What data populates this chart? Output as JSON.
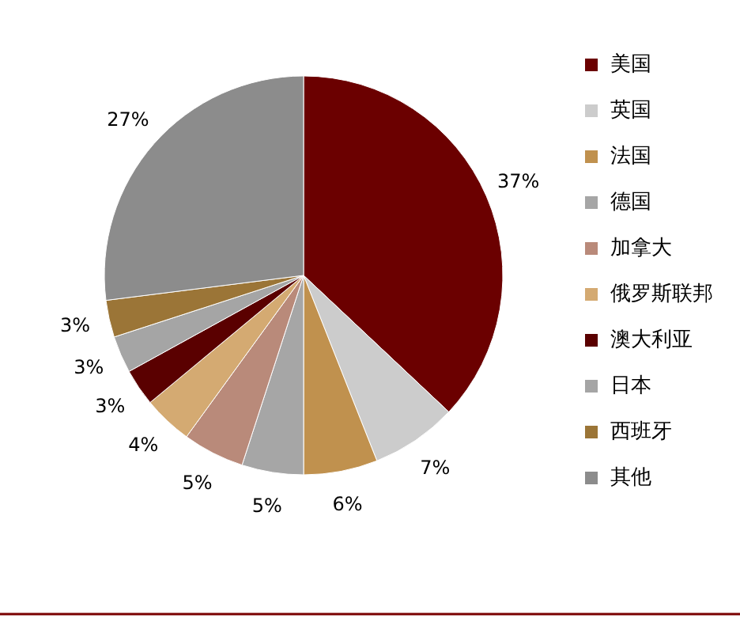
{
  "chart_data": {
    "type": "pie",
    "categories": [
      "美国",
      "英国",
      "法国",
      "德国",
      "加拿大",
      "俄罗斯联邦",
      "澳大利亚",
      "日本",
      "西班牙",
      "其他"
    ],
    "values": [
      37,
      7,
      6,
      5,
      5,
      4,
      3,
      3,
      3,
      27
    ],
    "value_labels": [
      "37%",
      "7%",
      "6%",
      "5%",
      "5%",
      "4%",
      "3%",
      "3%",
      "3%",
      "27%"
    ],
    "colors": [
      "#6b0000",
      "#cccccc",
      "#c0914e",
      "#a6a6a6",
      "#b98a7a",
      "#d4aa72",
      "#5a0000",
      "#a5a5a5",
      "#9b7537",
      "#8c8c8c"
    ],
    "legend": "right"
  }
}
